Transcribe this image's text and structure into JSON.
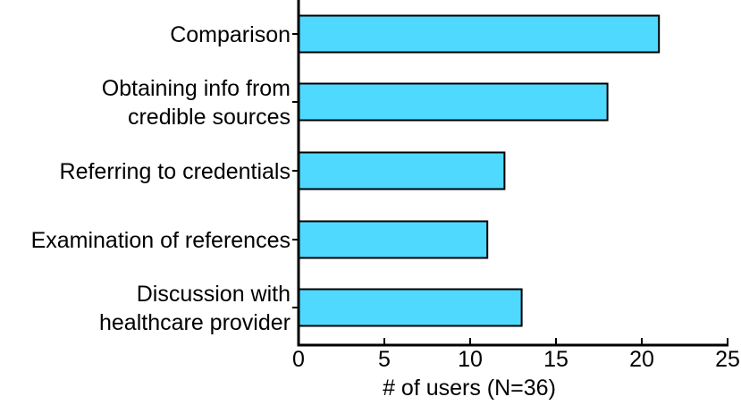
{
  "chart_data": {
    "type": "bar",
    "orientation": "horizontal",
    "categories": [
      [
        "Comparison"
      ],
      [
        "Obtaining info from",
        "credible sources"
      ],
      [
        "Referring to credentials"
      ],
      [
        "Examination of references"
      ],
      [
        "Discussion with",
        "healthcare provider"
      ]
    ],
    "values": [
      21,
      18,
      12,
      11,
      13
    ],
    "xlabel": "# of users (N=36)",
    "ylabel": "",
    "title": "",
    "xlim": [
      0,
      25
    ],
    "xticks": [
      0,
      5,
      10,
      15,
      20,
      25
    ],
    "grid": false,
    "legend": "none",
    "bar_color": "#4fd9ff",
    "edge_color": "#000000"
  }
}
